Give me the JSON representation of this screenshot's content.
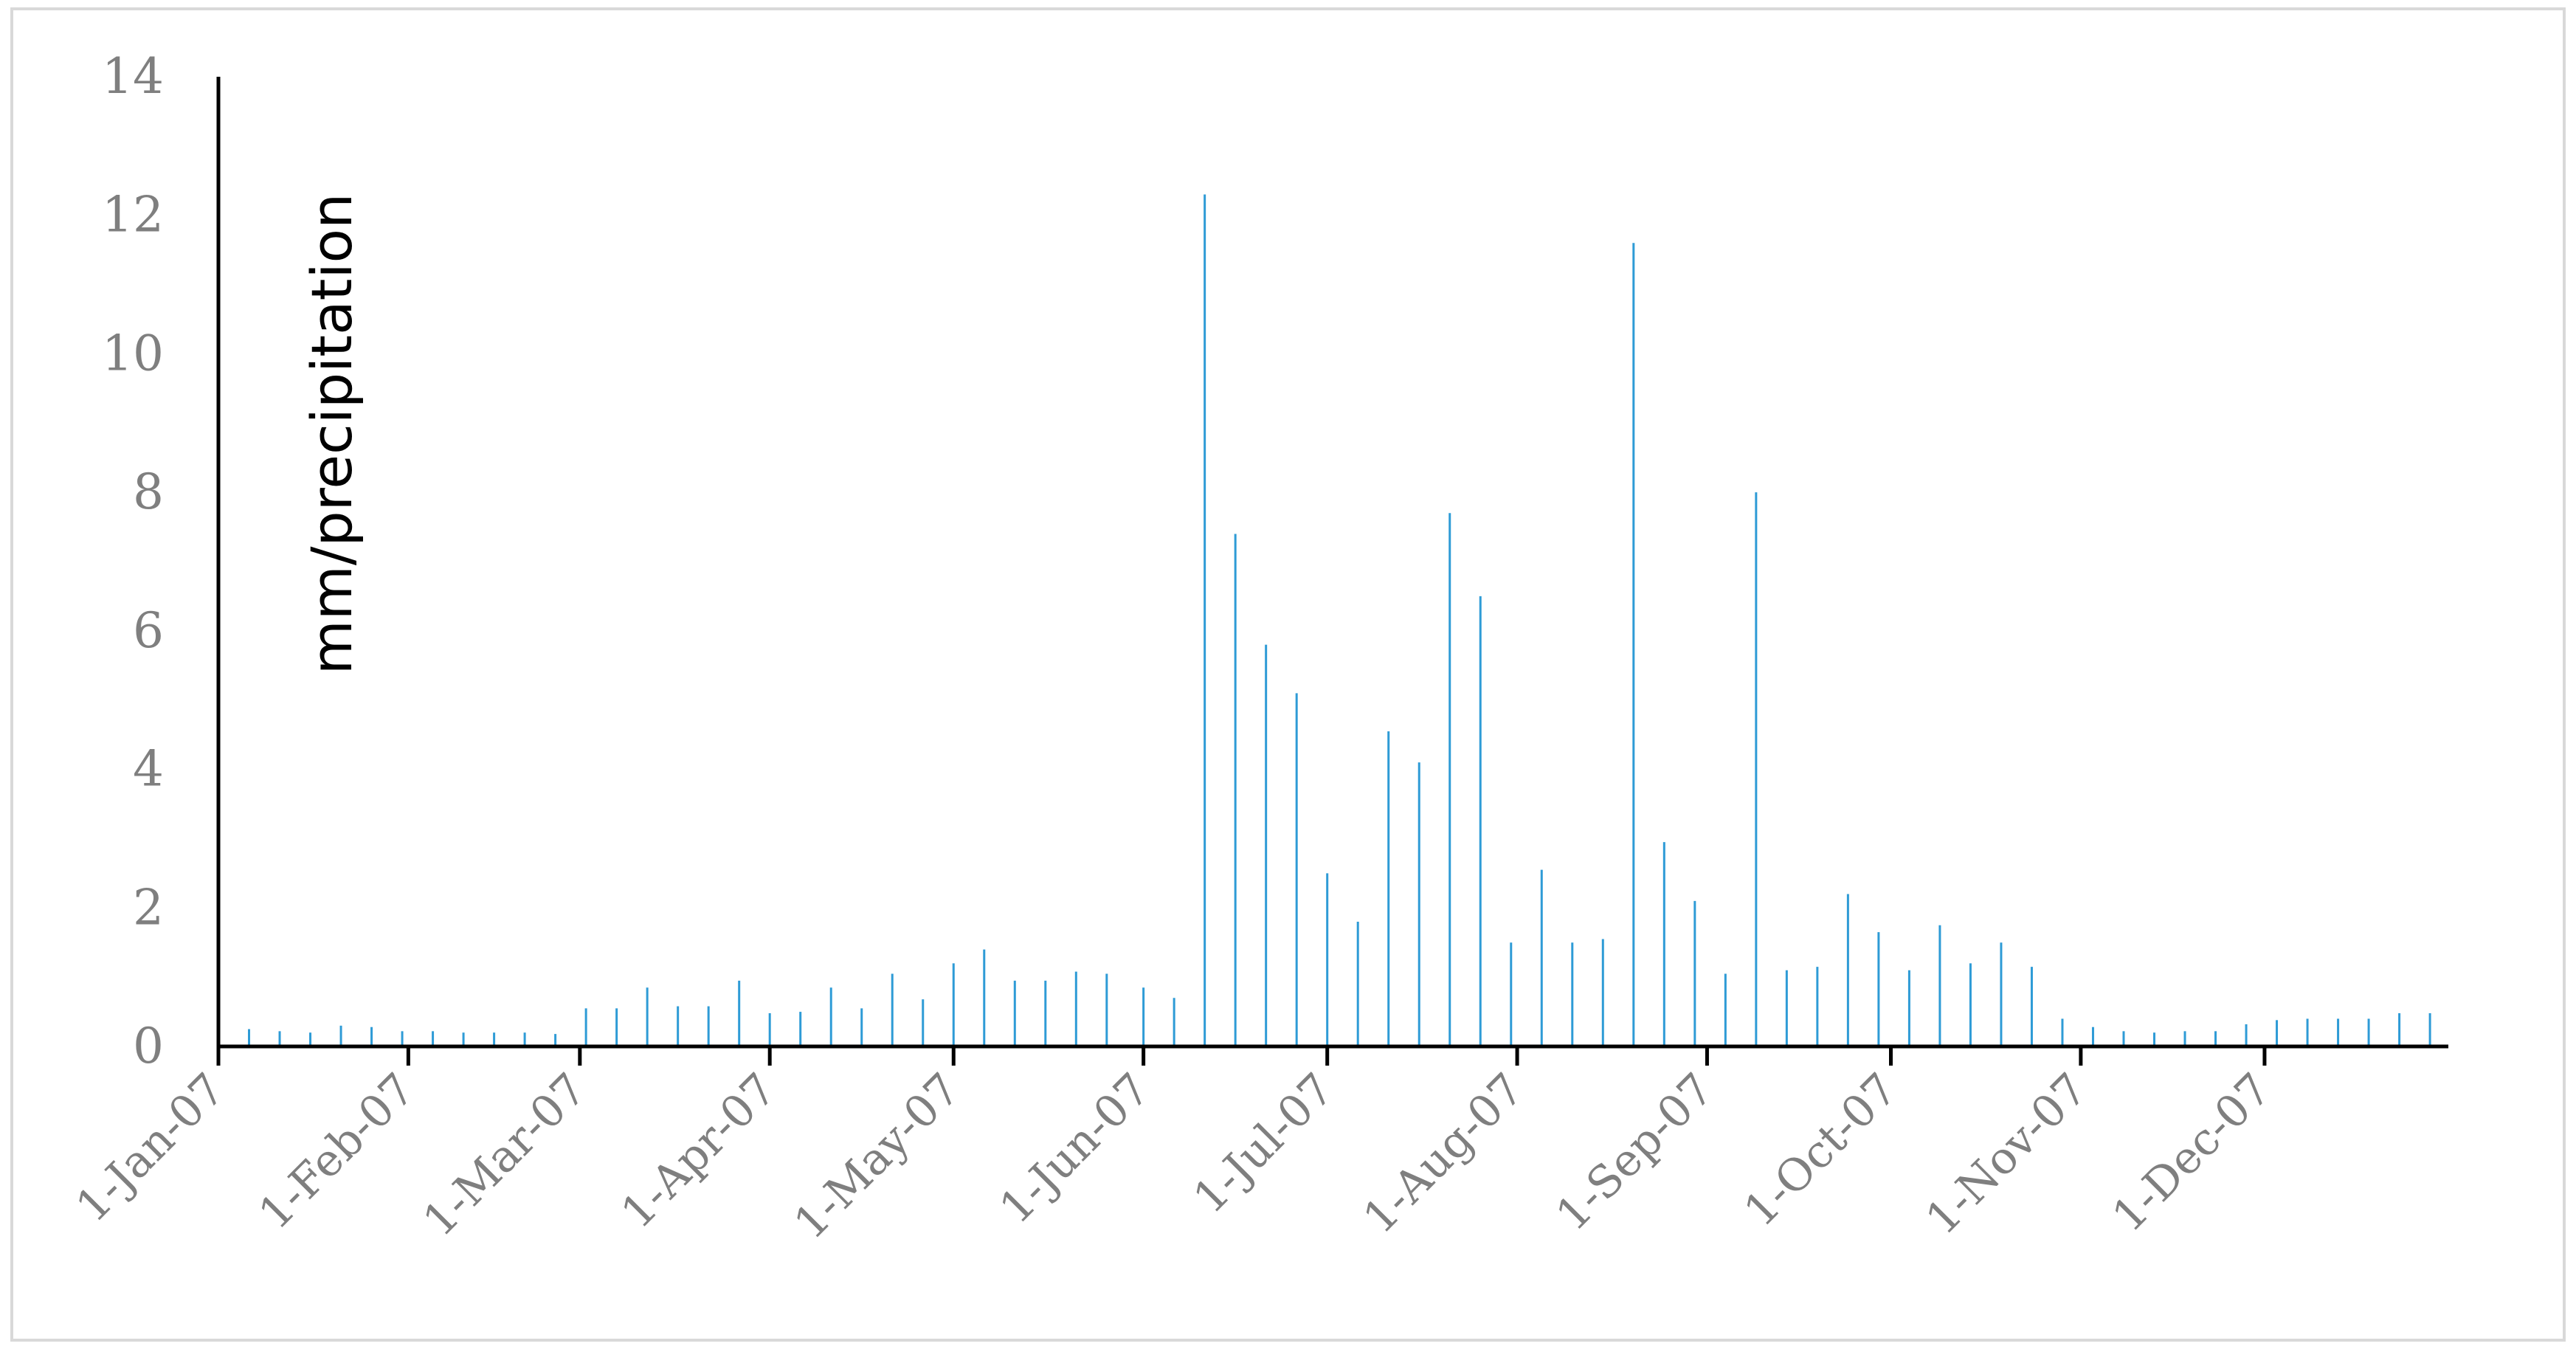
{
  "chart_data": {
    "type": "bar",
    "title": "",
    "xlabel": "",
    "ylabel": "mm/precipitation",
    "ylim": [
      0,
      14
    ],
    "yticks": [
      "0",
      "2",
      "4",
      "6",
      "8",
      "10",
      "12",
      "14"
    ],
    "xlim": [
      "2007-01-01",
      "2007-12-31"
    ],
    "xticks": [
      {
        "date": "2007-01-01",
        "label": "1-Jan-07"
      },
      {
        "date": "2007-02-01",
        "label": "1-Feb-07"
      },
      {
        "date": "2007-03-01",
        "label": "1-Mar-07"
      },
      {
        "date": "2007-04-01",
        "label": "1-Apr-07"
      },
      {
        "date": "2007-05-01",
        "label": "1-May-07"
      },
      {
        "date": "2007-06-01",
        "label": "1-Jun-07"
      },
      {
        "date": "2007-07-01",
        "label": "1-Jul-07"
      },
      {
        "date": "2007-08-01",
        "label": "1-Aug-07"
      },
      {
        "date": "2007-09-01",
        "label": "1-Sep-07"
      },
      {
        "date": "2007-10-01",
        "label": "1-Oct-07"
      },
      {
        "date": "2007-11-01",
        "label": "1-Nov-07"
      },
      {
        "date": "2007-12-01",
        "label": "1-Dec-07"
      }
    ],
    "grid": false,
    "legend": "none",
    "bar_color": "#2e9bd6",
    "axis_color": "#000000",
    "tick_color": "#7f7f7f",
    "x": [
      "2007-01-01",
      "2007-01-06",
      "2007-01-11",
      "2007-01-16",
      "2007-01-21",
      "2007-01-26",
      "2007-01-31",
      "2007-02-05",
      "2007-02-10",
      "2007-02-15",
      "2007-02-20",
      "2007-02-25",
      "2007-03-02",
      "2007-03-07",
      "2007-03-12",
      "2007-03-17",
      "2007-03-22",
      "2007-03-27",
      "2007-04-01",
      "2007-04-06",
      "2007-04-11",
      "2007-04-16",
      "2007-04-21",
      "2007-04-26",
      "2007-05-01",
      "2007-05-06",
      "2007-05-11",
      "2007-05-16",
      "2007-05-21",
      "2007-05-26",
      "2007-06-01",
      "2007-06-06",
      "2007-06-11",
      "2007-06-16",
      "2007-06-21",
      "2007-06-26",
      "2007-07-01",
      "2007-07-06",
      "2007-07-11",
      "2007-07-16",
      "2007-07-21",
      "2007-07-26",
      "2007-07-31",
      "2007-08-05",
      "2007-08-10",
      "2007-08-15",
      "2007-08-20",
      "2007-08-25",
      "2007-08-30",
      "2007-09-04",
      "2007-09-09",
      "2007-09-14",
      "2007-09-19",
      "2007-09-24",
      "2007-09-29",
      "2007-10-04",
      "2007-10-09",
      "2007-10-14",
      "2007-10-19",
      "2007-10-24",
      "2007-10-29",
      "2007-11-03",
      "2007-11-08",
      "2007-11-13",
      "2007-11-18",
      "2007-11-23",
      "2007-11-28",
      "2007-12-03",
      "2007-12-08",
      "2007-12-13",
      "2007-12-18",
      "2007-12-23",
      "2007-12-28"
    ],
    "values": [
      0.3,
      0.25,
      0.22,
      0.2,
      0.3,
      0.28,
      0.22,
      0.22,
      0.2,
      0.2,
      0.2,
      0.18,
      0.55,
      0.55,
      0.85,
      0.58,
      0.58,
      0.95,
      0.48,
      0.5,
      0.85,
      0.55,
      1.05,
      0.68,
      1.2,
      1.4,
      0.95,
      0.95,
      1.08,
      1.05,
      0.85,
      0.7,
      12.3,
      7.4,
      5.8,
      5.1,
      2.5,
      1.8,
      4.55,
      4.1,
      7.7,
      6.5,
      1.5,
      2.55,
      1.5,
      1.55,
      11.6,
      2.95,
      2.1,
      1.05,
      8.0,
      1.1,
      1.15,
      2.2,
      1.65,
      1.1,
      1.75,
      1.2,
      1.5,
      1.15,
      0.4,
      0.28,
      0.22,
      0.2,
      0.22,
      0.22,
      0.32,
      0.38,
      0.4,
      0.4,
      0.4,
      0.48,
      0.48
    ]
  }
}
